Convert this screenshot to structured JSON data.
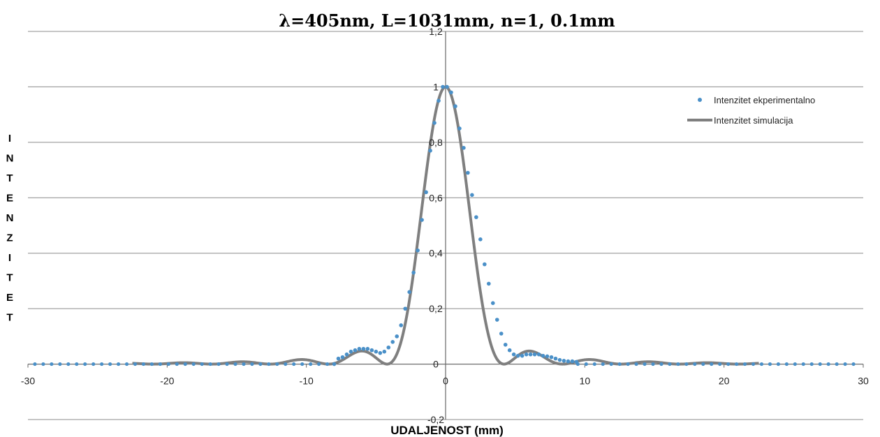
{
  "chart_data": {
    "type": "scatter",
    "title": "λ=405nm, L=1031mm, n=1, 0.1mm",
    "xlabel": "UDALJENOST (mm)",
    "ylabel": "INTENZITET",
    "xlim": [
      -30,
      30
    ],
    "ylim": [
      -0.2,
      1.2
    ],
    "x_ticks": [
      -30,
      -20,
      -10,
      0,
      10,
      20,
      30
    ],
    "x_tick_labels": [
      "-30",
      "-20",
      "-10",
      "0",
      "10",
      "20",
      "30"
    ],
    "y_ticks": [
      -0.2,
      0,
      0.2,
      0.4,
      0.6,
      0.8,
      1,
      1.2
    ],
    "y_tick_labels": [
      "-0,2",
      "0",
      "0,2",
      "0,4",
      "0,6",
      "0,8",
      "1",
      "1,2"
    ],
    "grid": true,
    "legend_position": "right",
    "series": [
      {
        "name": "Intenzitet ekperimentalno",
        "type": "scatter",
        "color": "#4a90c8",
        "x": [
          -8.0,
          -7.7,
          -7.4,
          -7.1,
          -6.8,
          -6.5,
          -6.2,
          -5.9,
          -5.6,
          -5.3,
          -5.0,
          -4.7,
          -4.4,
          -4.1,
          -3.8,
          -3.5,
          -3.2,
          -2.9,
          -2.6,
          -2.3,
          -2.0,
          -1.7,
          -1.4,
          -1.1,
          -0.8,
          -0.5,
          -0.2,
          0.1,
          0.4,
          0.7,
          1.0,
          1.3,
          1.6,
          1.9,
          2.2,
          2.5,
          2.8,
          3.1,
          3.4,
          3.7,
          4.0,
          4.3,
          4.6,
          4.9,
          5.2,
          5.5,
          5.8,
          6.1,
          6.4,
          6.7,
          7.0,
          7.3,
          7.6,
          7.9,
          8.2,
          8.5,
          8.8,
          9.1,
          9.4
        ],
        "y": [
          0.0,
          0.02,
          0.025,
          0.035,
          0.045,
          0.05,
          0.055,
          0.055,
          0.055,
          0.05,
          0.045,
          0.04,
          0.045,
          0.06,
          0.08,
          0.1,
          0.14,
          0.2,
          0.26,
          0.33,
          0.41,
          0.52,
          0.62,
          0.77,
          0.87,
          0.95,
          1.0,
          1.0,
          0.98,
          0.93,
          0.85,
          0.78,
          0.69,
          0.61,
          0.53,
          0.45,
          0.36,
          0.29,
          0.22,
          0.16,
          0.11,
          0.07,
          0.05,
          0.035,
          0.03,
          0.03,
          0.035,
          0.035,
          0.035,
          0.035,
          0.03,
          0.028,
          0.025,
          0.02,
          0.015,
          0.012,
          0.01,
          0.01,
          0.008
        ]
      },
      {
        "name": "Intenzitet simulacija",
        "type": "line",
        "color": "#7f7f7f",
        "model": "sinc2",
        "x_range": [
          -22.5,
          22.5
        ],
        "first_minimum": 4.2
      }
    ]
  }
}
